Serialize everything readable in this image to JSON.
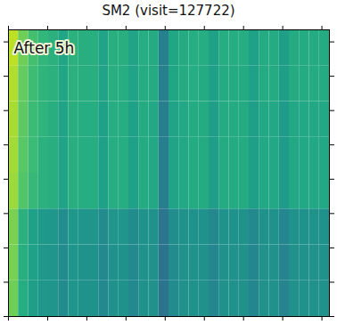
{
  "chart_data": {
    "type": "heatmap",
    "title": "SM2 (visit=127722)",
    "annotations": [
      {
        "text": "After 5h"
      }
    ],
    "x_bins": [
      0,
      128,
      256,
      384,
      512,
      640,
      768,
      896,
      1024,
      1152,
      1280,
      1408,
      1536,
      1664,
      1792,
      1920,
      2048,
      2176,
      2304,
      2432,
      2560,
      2688,
      2816,
      2944,
      3072,
      3200,
      3328,
      3456,
      3584,
      3712,
      3840,
      3968,
      4096
    ],
    "y_bins": [
      0,
      522,
      1044,
      1566,
      2088,
      2610,
      3132,
      3654,
      4176
    ],
    "cells": [
      [
        0.78,
        0.62,
        0.56,
        0.53,
        0.52,
        0.48,
        0.52,
        0.51,
        0.51,
        0.47,
        0.51,
        0.51,
        0.47,
        0.5,
        0.5,
        0.38,
        0.48,
        0.5,
        0.5,
        0.5,
        0.46,
        0.5,
        0.5,
        0.5,
        0.46,
        0.5,
        0.5,
        0.45,
        0.5,
        0.5,
        0.5,
        0.5
      ],
      [
        0.79,
        0.63,
        0.57,
        0.53,
        0.52,
        0.48,
        0.52,
        0.51,
        0.51,
        0.47,
        0.51,
        0.51,
        0.47,
        0.5,
        0.5,
        0.38,
        0.48,
        0.5,
        0.51,
        0.5,
        0.46,
        0.5,
        0.5,
        0.5,
        0.46,
        0.5,
        0.5,
        0.45,
        0.5,
        0.5,
        0.5,
        0.5
      ],
      [
        0.8,
        0.64,
        0.57,
        0.54,
        0.53,
        0.49,
        0.53,
        0.52,
        0.52,
        0.48,
        0.52,
        0.52,
        0.48,
        0.51,
        0.51,
        0.39,
        0.49,
        0.51,
        0.51,
        0.51,
        0.47,
        0.51,
        0.51,
        0.51,
        0.47,
        0.51,
        0.51,
        0.46,
        0.51,
        0.51,
        0.51,
        0.51
      ],
      [
        0.85,
        0.73,
        0.67,
        0.64,
        0.63,
        0.58,
        0.63,
        0.62,
        0.62,
        0.57,
        0.62,
        0.62,
        0.57,
        0.61,
        0.6,
        0.42,
        0.58,
        0.6,
        0.61,
        0.61,
        0.56,
        0.61,
        0.61,
        0.61,
        0.56,
        0.6,
        0.6,
        0.55,
        0.6,
        0.6,
        0.6,
        0.6
      ],
      [
        0.86,
        0.74,
        0.68,
        0.64,
        0.63,
        0.58,
        0.63,
        0.62,
        0.62,
        0.57,
        0.62,
        0.62,
        0.57,
        0.61,
        0.6,
        0.42,
        0.58,
        0.6,
        0.61,
        0.61,
        0.56,
        0.61,
        0.61,
        0.61,
        0.56,
        0.6,
        0.6,
        0.55,
        0.6,
        0.6,
        0.6,
        0.6
      ],
      [
        0.87,
        0.75,
        0.68,
        0.65,
        0.63,
        0.58,
        0.63,
        0.62,
        0.62,
        0.57,
        0.62,
        0.62,
        0.57,
        0.61,
        0.6,
        0.42,
        0.58,
        0.6,
        0.61,
        0.61,
        0.56,
        0.61,
        0.61,
        0.61,
        0.56,
        0.6,
        0.6,
        0.55,
        0.6,
        0.6,
        0.6,
        0.6
      ],
      [
        0.88,
        0.76,
        0.69,
        0.65,
        0.64,
        0.59,
        0.64,
        0.63,
        0.63,
        0.58,
        0.63,
        0.62,
        0.58,
        0.61,
        0.61,
        0.43,
        0.59,
        0.61,
        0.62,
        0.61,
        0.57,
        0.61,
        0.61,
        0.61,
        0.57,
        0.61,
        0.61,
        0.56,
        0.61,
        0.61,
        0.61,
        0.61
      ],
      [
        0.9,
        0.78,
        0.7,
        0.66,
        0.64,
        0.59,
        0.64,
        0.63,
        0.63,
        0.58,
        0.63,
        0.63,
        0.58,
        0.62,
        0.61,
        0.43,
        0.59,
        0.61,
        0.62,
        0.62,
        0.57,
        0.62,
        0.62,
        0.62,
        0.57,
        0.61,
        0.61,
        0.56,
        0.61,
        0.61,
        0.61,
        0.61
      ]
    ],
    "color_range": [
      0,
      1
    ],
    "xlim": [
      0,
      4096
    ],
    "ylim": [
      0,
      4176
    ],
    "xticks": [
      0,
      500,
      1000,
      1500,
      2000,
      2500,
      3000,
      3500,
      4000
    ],
    "yticks": [
      0,
      500,
      1000,
      1500,
      2000,
      2500,
      3000,
      3500,
      4000
    ],
    "tick_labels": false,
    "grid": false
  }
}
